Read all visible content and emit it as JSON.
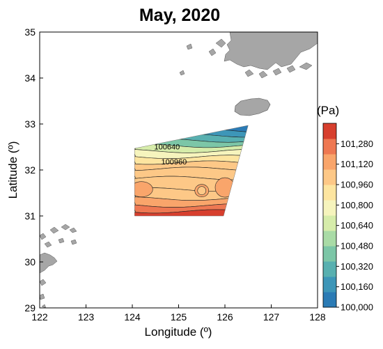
{
  "title": "May, 2020",
  "x_axis": {
    "label": "Longitude (º)",
    "ticks": [
      "122",
      "123",
      "124",
      "125",
      "126",
      "127",
      "128"
    ],
    "range": [
      122,
      128
    ]
  },
  "y_axis": {
    "label": "Latitude (º)",
    "ticks": [
      "29",
      "30",
      "31",
      "32",
      "33",
      "34",
      "35"
    ],
    "range": [
      29,
      35
    ]
  },
  "colorbar": {
    "unit_label": "(Pa)",
    "tick_labels": [
      "100,000",
      "100,160",
      "100,320",
      "100,480",
      "100,640",
      "100,800",
      "100,960",
      "101,120",
      "101,280"
    ],
    "range": [
      100000,
      101440
    ],
    "colors": [
      "#2b7bb5",
      "#3d96b8",
      "#58b0b0",
      "#7cc6a7",
      "#a9dba6",
      "#d6ecaa",
      "#f6f4bd",
      "#fde5a0",
      "#fdc887",
      "#f9a56b",
      "#ee7852",
      "#d73f2e"
    ]
  },
  "contour_labels": [
    {
      "text": "100640",
      "lon": 124.75,
      "lat": 32.45
    },
    {
      "text": "100960",
      "lon": 124.9,
      "lat": 32.12
    }
  ],
  "region": {
    "corners_lonlat": [
      [
        124.05,
        32.47
      ],
      [
        126.5,
        32.97
      ],
      [
        125.97,
        31.0
      ],
      [
        124.05,
        31.0
      ]
    ],
    "pressure_bands": [
      {
        "lat": 32.9,
        "pa": 100050
      },
      {
        "lat": 32.8,
        "pa": 100180
      },
      {
        "lat": 32.7,
        "pa": 100330
      },
      {
        "lat": 32.58,
        "pa": 100470
      },
      {
        "lat": 32.47,
        "pa": 100620
      },
      {
        "lat": 32.35,
        "pa": 100760
      },
      {
        "lat": 32.22,
        "pa": 100900
      },
      {
        "lat": 32.1,
        "pa": 101000
      },
      {
        "lat": 31.95,
        "pa": 101050
      },
      {
        "lat": 31.7,
        "pa": 101000
      },
      {
        "lat": 31.45,
        "pa": 101010
      },
      {
        "lat": 31.3,
        "pa": 101120
      },
      {
        "lat": 31.15,
        "pa": 101250
      },
      {
        "lat": 31.05,
        "pa": 101380
      }
    ]
  },
  "map_elements": {
    "land_color": "#a6a6a6",
    "islands": [
      "Korean peninsula coast",
      "Jeju island",
      "China coast"
    ]
  }
}
